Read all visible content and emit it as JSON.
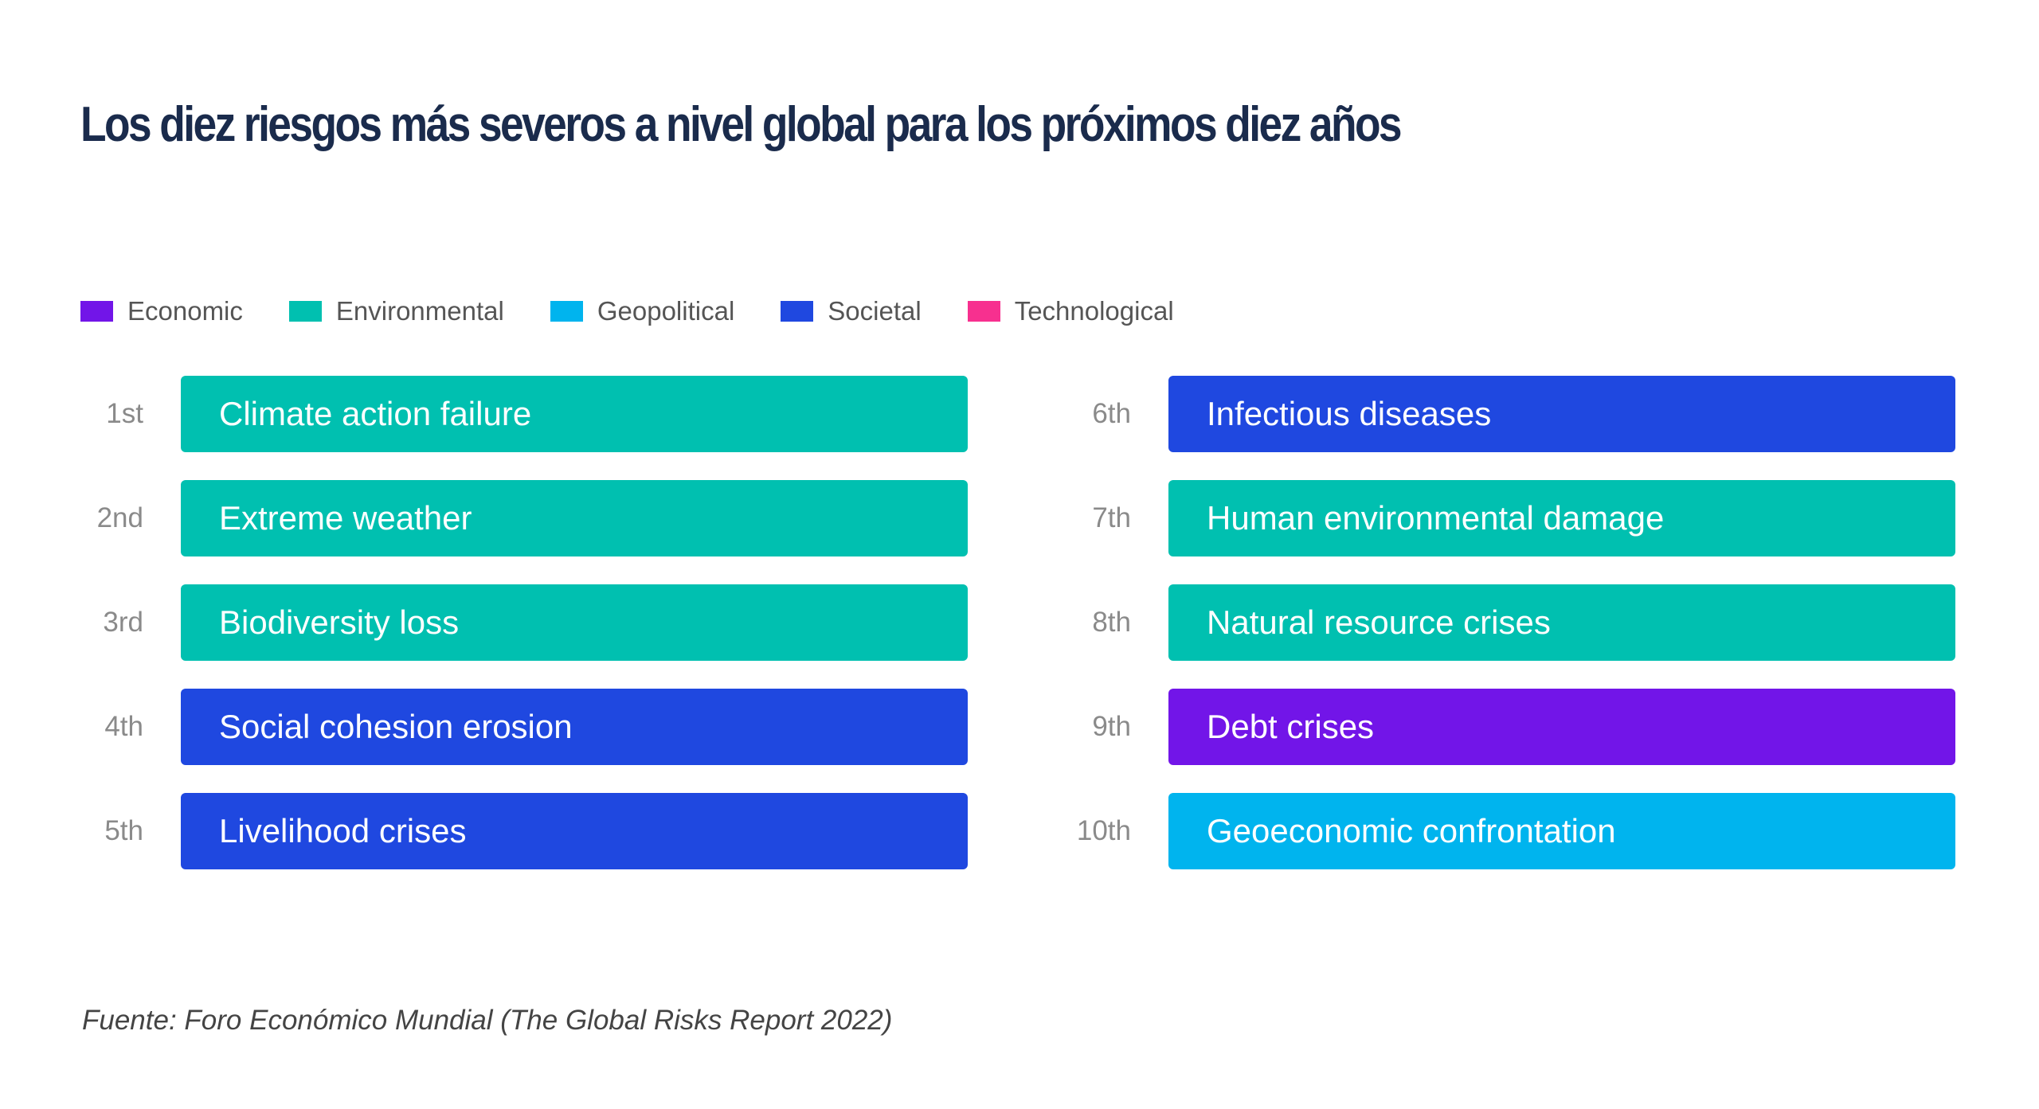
{
  "title": "Los diez riesgos más severos a nivel global para los próximos diez años",
  "legend": [
    {
      "label": "Economic",
      "color": "#7215e8"
    },
    {
      "label": "Environmental",
      "color": "#00c0b0"
    },
    {
      "label": "Geopolitical",
      "color": "#00b4ee"
    },
    {
      "label": "Societal",
      "color": "#1f48e0"
    },
    {
      "label": "Technological",
      "color": "#f7308f"
    }
  ],
  "risks": [
    {
      "rank": "1st",
      "label": "Climate action failure",
      "category": "Environmental",
      "color": "#00c0b0"
    },
    {
      "rank": "2nd",
      "label": "Extreme weather",
      "category": "Environmental",
      "color": "#00c0b0"
    },
    {
      "rank": "3rd",
      "label": "Biodiversity loss",
      "category": "Environmental",
      "color": "#00c0b0"
    },
    {
      "rank": "4th",
      "label": "Social cohesion erosion",
      "category": "Societal",
      "color": "#1f48e0"
    },
    {
      "rank": "5th",
      "label": "Livelihood crises",
      "category": "Societal",
      "color": "#1f48e0"
    },
    {
      "rank": "6th",
      "label": "Infectious diseases",
      "category": "Societal",
      "color": "#1f48e0"
    },
    {
      "rank": "7th",
      "label": "Human environmental damage",
      "category": "Environmental",
      "color": "#00c0b0"
    },
    {
      "rank": "8th",
      "label": "Natural resource crises",
      "category": "Environmental",
      "color": "#00c0b0"
    },
    {
      "rank": "9th",
      "label": "Debt crises",
      "category": "Economic",
      "color": "#7215e8"
    },
    {
      "rank": "10th",
      "label": "Geoeconomic confrontation",
      "category": "Geopolitical",
      "color": "#00b4ee"
    }
  ],
  "source": "Fuente: Foro Económico Mundial (The Global Risks Report 2022)"
}
